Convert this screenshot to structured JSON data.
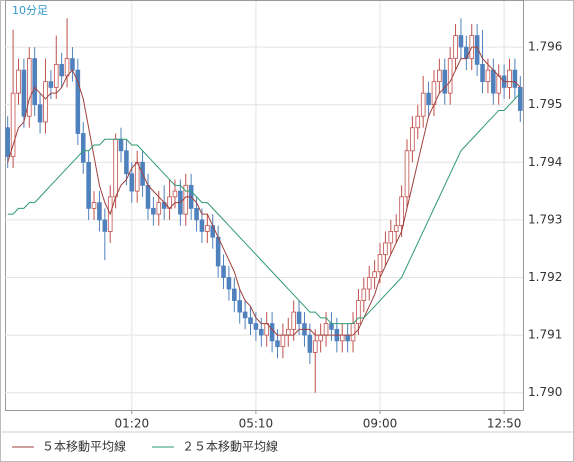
{
  "chart_data": {
    "type": "candlestick",
    "label": "10分足",
    "categories": [
      null,
      null,
      null,
      null,
      null,
      null,
      null,
      null,
      null,
      null,
      null,
      null,
      null,
      null,
      null,
      null,
      null,
      null,
      null,
      null,
      null,
      null,
      null,
      "01:20",
      null,
      null,
      null,
      null,
      null,
      null,
      null,
      null,
      null,
      null,
      null,
      null,
      null,
      null,
      null,
      null,
      null,
      null,
      null,
      null,
      null,
      null,
      "05:10",
      null,
      null,
      null,
      null,
      null,
      null,
      null,
      null,
      null,
      null,
      null,
      null,
      null,
      null,
      null,
      null,
      null,
      null,
      null,
      null,
      null,
      null,
      "09:00",
      null,
      null,
      null,
      null,
      null,
      null,
      null,
      null,
      null,
      null,
      null,
      null,
      null,
      null,
      null,
      null,
      null,
      null,
      null,
      null,
      null,
      null,
      "12:50",
      null,
      null,
      null
    ],
    "open": [
      1.7946,
      1.7941,
      1.7952,
      1.7956,
      1.7948,
      1.7958,
      1.795,
      1.7947,
      1.7954,
      1.7953,
      1.7957,
      1.7955,
      1.7958,
      1.7956,
      1.7945,
      1.794,
      1.7932,
      1.7933,
      1.793,
      1.7928,
      1.7934,
      1.7944,
      1.7942,
      1.7938,
      1.7935,
      1.794,
      1.7936,
      1.7932,
      1.7931,
      1.7933,
      1.7932,
      1.7934,
      1.7935,
      1.7931,
      1.7936,
      1.7932,
      1.793,
      1.7928,
      1.7929,
      1.7927,
      1.7922,
      1.792,
      1.7918,
      1.7916,
      1.7914,
      1.7913,
      1.7912,
      1.7911,
      1.791,
      1.7912,
      1.7909,
      1.7908,
      1.791,
      1.7911,
      1.7914,
      1.7912,
      1.791,
      1.7907,
      1.7909,
      1.791,
      1.7912,
      1.7911,
      1.7909,
      1.791,
      1.7909,
      1.7912,
      1.7916,
      1.7918,
      1.792,
      1.7921,
      1.7924,
      1.7926,
      1.7928,
      1.7929,
      1.7934,
      1.7942,
      1.7946,
      1.7948,
      1.7952,
      1.795,
      1.7954,
      1.7956,
      1.7952,
      1.7958,
      1.7962,
      1.796,
      1.7958,
      1.7962,
      1.7957,
      1.7954,
      1.7956,
      1.7952,
      1.7955,
      1.7953,
      1.7956,
      1.7953
    ],
    "high": [
      1.7948,
      1.7963,
      1.7958,
      1.7958,
      1.796,
      1.796,
      1.7952,
      1.7958,
      1.7956,
      1.7962,
      1.7959,
      1.7965,
      1.796,
      1.7958,
      1.7947,
      1.7942,
      1.7935,
      1.7935,
      1.7932,
      1.7936,
      1.7945,
      1.7946,
      1.7944,
      1.794,
      1.7942,
      1.7942,
      1.7938,
      1.7934,
      1.7935,
      1.7936,
      1.7937,
      1.7937,
      1.7937,
      1.7938,
      1.7938,
      1.7934,
      1.7932,
      1.7931,
      1.7931,
      1.7929,
      1.7924,
      1.7922,
      1.792,
      1.7918,
      1.7916,
      1.7915,
      1.7914,
      1.7913,
      1.7914,
      1.7914,
      1.7911,
      1.7912,
      1.7913,
      1.7916,
      1.7916,
      1.7914,
      1.7912,
      1.7911,
      1.7912,
      1.7914,
      1.7914,
      1.7913,
      1.7912,
      1.7912,
      1.7914,
      1.7918,
      1.792,
      1.7922,
      1.7923,
      1.7926,
      1.7928,
      1.793,
      1.7931,
      1.7936,
      1.7944,
      1.7948,
      1.795,
      1.7955,
      1.7954,
      1.7956,
      1.7958,
      1.7958,
      1.796,
      1.7964,
      1.7965,
      1.7962,
      1.7964,
      1.7964,
      1.7963,
      1.7958,
      1.7958,
      1.7957,
      1.7957,
      1.7958,
      1.7958,
      1.7955
    ],
    "low": [
      1.7939,
      1.7939,
      1.795,
      1.7946,
      1.7946,
      1.7948,
      1.7945,
      1.7945,
      1.7951,
      1.7951,
      1.7953,
      1.7953,
      1.7954,
      1.7943,
      1.7938,
      1.793,
      1.793,
      1.7928,
      1.7923,
      1.7926,
      1.7932,
      1.794,
      1.7936,
      1.7933,
      1.7933,
      1.7934,
      1.793,
      1.7929,
      1.7929,
      1.793,
      1.793,
      1.7932,
      1.7929,
      1.7929,
      1.793,
      1.7928,
      1.7926,
      1.7926,
      1.7925,
      1.792,
      1.7918,
      1.7916,
      1.7914,
      1.7912,
      1.7911,
      1.791,
      1.7909,
      1.7908,
      1.7908,
      1.7907,
      1.7906,
      1.7906,
      1.7908,
      1.7909,
      1.791,
      1.7908,
      1.7905,
      1.79,
      1.7907,
      1.7908,
      1.7909,
      1.7907,
      1.7907,
      1.7907,
      1.7907,
      1.791,
      1.7914,
      1.7916,
      1.7918,
      1.7919,
      1.7922,
      1.7924,
      1.7926,
      1.7927,
      1.7932,
      1.794,
      1.7944,
      1.7946,
      1.7948,
      1.7948,
      1.7952,
      1.795,
      1.795,
      1.7956,
      1.7958,
      1.7956,
      1.7956,
      1.7955,
      1.7952,
      1.7952,
      1.795,
      1.795,
      1.7951,
      1.7951,
      1.7951,
      1.7947
    ],
    "close": [
      1.7941,
      1.7952,
      1.7956,
      1.7948,
      1.7958,
      1.795,
      1.7947,
      1.7954,
      1.7953,
      1.7957,
      1.7955,
      1.7958,
      1.7956,
      1.7945,
      1.794,
      1.7932,
      1.7933,
      1.793,
      1.7928,
      1.7934,
      1.7944,
      1.7942,
      1.7938,
      1.7935,
      1.794,
      1.7936,
      1.7932,
      1.7931,
      1.7933,
      1.7932,
      1.7934,
      1.7935,
      1.7931,
      1.7936,
      1.7932,
      1.793,
      1.7928,
      1.7929,
      1.7927,
      1.7922,
      1.792,
      1.7918,
      1.7916,
      1.7914,
      1.7913,
      1.7912,
      1.7911,
      1.791,
      1.7912,
      1.7909,
      1.7908,
      1.791,
      1.7911,
      1.7914,
      1.7912,
      1.791,
      1.7907,
      1.7909,
      1.791,
      1.7912,
      1.7911,
      1.7909,
      1.791,
      1.7909,
      1.7912,
      1.7916,
      1.7918,
      1.792,
      1.7921,
      1.7924,
      1.7926,
      1.7928,
      1.7929,
      1.7934,
      1.7942,
      1.7946,
      1.7948,
      1.7952,
      1.795,
      1.7954,
      1.7956,
      1.7952,
      1.7958,
      1.7962,
      1.796,
      1.7958,
      1.7962,
      1.7957,
      1.7954,
      1.7956,
      1.7952,
      1.7955,
      1.7953,
      1.7956,
      1.7953,
      1.7949
    ],
    "up_color": "#c0504d",
    "down_color": "#4f81bd",
    "series": [
      {
        "name": "５本移動平均線",
        "color": "#a0403c",
        "values": [
          1.794,
          1.7943,
          1.7946,
          1.7947,
          1.7951,
          1.7953,
          1.7952,
          1.7951,
          1.7952,
          1.7952,
          1.7953,
          1.7955,
          1.7956,
          1.7954,
          1.7951,
          1.7946,
          1.7941,
          1.7936,
          1.7933,
          1.7931,
          1.7934,
          1.7936,
          1.7937,
          1.7939,
          1.794,
          1.7938,
          1.7936,
          1.7935,
          1.7934,
          1.7933,
          1.7932,
          1.7933,
          1.7933,
          1.7934,
          1.7934,
          1.7933,
          1.7931,
          1.7931,
          1.7929,
          1.7927,
          1.7925,
          1.7923,
          1.7921,
          1.7918,
          1.7916,
          1.7915,
          1.7913,
          1.7912,
          1.7912,
          1.7911,
          1.791,
          1.791,
          1.791,
          1.791,
          1.7911,
          1.7911,
          1.7911,
          1.791,
          1.791,
          1.791,
          1.791,
          1.791,
          1.791,
          1.791,
          1.791,
          1.7911,
          1.7913,
          1.7915,
          1.7917,
          1.792,
          1.7922,
          1.7924,
          1.7926,
          1.7928,
          1.7932,
          1.7936,
          1.794,
          1.7944,
          1.7948,
          1.795,
          1.7952,
          1.7953,
          1.7954,
          1.7956,
          1.7958,
          1.7958,
          1.796,
          1.796,
          1.7958,
          1.7957,
          1.7956,
          1.7955,
          1.7954,
          1.7954,
          1.7954,
          1.7953
        ]
      },
      {
        "name": "２５本移動平均線",
        "color": "#2e9a6e",
        "values": [
          1.7931,
          1.7931,
          1.7932,
          1.7932,
          1.7933,
          1.7933,
          1.7934,
          1.7935,
          1.7936,
          1.7937,
          1.7938,
          1.7939,
          1.794,
          1.7941,
          1.7942,
          1.7942,
          1.7943,
          1.7943,
          1.7944,
          1.7944,
          1.7944,
          1.7944,
          1.7944,
          1.7943,
          1.7943,
          1.7942,
          1.7941,
          1.794,
          1.7939,
          1.7938,
          1.7937,
          1.7936,
          1.7936,
          1.7935,
          1.7935,
          1.7934,
          1.7933,
          1.7933,
          1.7932,
          1.7931,
          1.793,
          1.7929,
          1.7928,
          1.7927,
          1.7926,
          1.7925,
          1.7924,
          1.7923,
          1.7922,
          1.7921,
          1.792,
          1.7919,
          1.7918,
          1.7917,
          1.7916,
          1.7915,
          1.7914,
          1.7914,
          1.7913,
          1.7913,
          1.7912,
          1.7912,
          1.7912,
          1.7912,
          1.7912,
          1.7913,
          1.7913,
          1.7914,
          1.7915,
          1.7916,
          1.7917,
          1.7918,
          1.7919,
          1.792,
          1.7922,
          1.7924,
          1.7926,
          1.7928,
          1.793,
          1.7932,
          1.7934,
          1.7936,
          1.7938,
          1.794,
          1.7942,
          1.7943,
          1.7944,
          1.7945,
          1.7946,
          1.7947,
          1.7948,
          1.7949,
          1.7949,
          1.795,
          1.7951,
          1.7952
        ]
      }
    ],
    "ylim": [
      1.7897,
      1.7968
    ],
    "yticks": [
      {
        "value": 1.79,
        "label": "1.790"
      },
      1.791,
      1.792,
      1.793,
      1.794,
      1.795,
      1.796
    ],
    "grid": true
  }
}
